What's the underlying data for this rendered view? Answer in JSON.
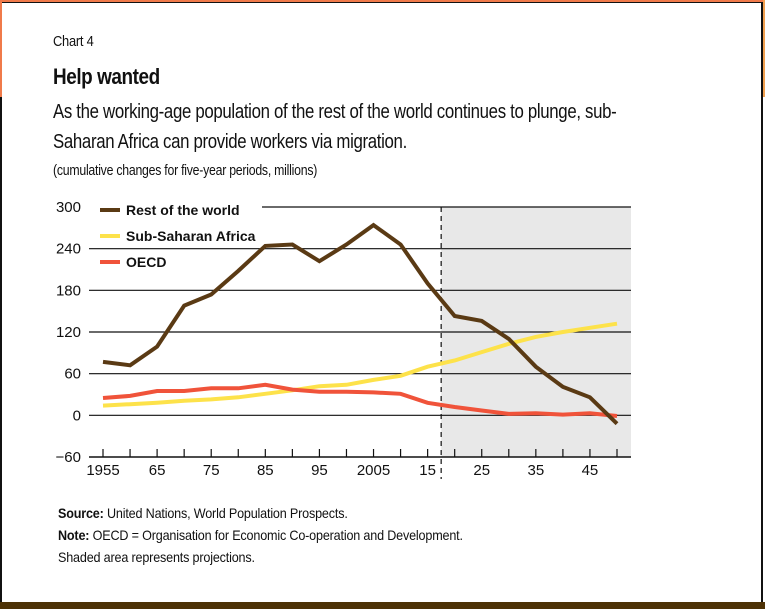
{
  "header": {
    "kicker": "Chart 4",
    "title": "Help wanted",
    "subtitle": "As the working-age population of the rest of the world continues to plunge, sub-Saharan Africa can provide workers via migration.",
    "units": "(cumulative changes for five-year periods, millions)"
  },
  "footer": {
    "source_label": "Source:",
    "source_text": " United Nations, World Population Prospects.",
    "note_label": "Note:",
    "note_text": " OECD = Organisation for Economic Co-operation and Development.",
    "note_text2": "Shaded area represents projections."
  },
  "colors": {
    "rest_of_world": "#5a3a14",
    "sub_saharan_africa": "#fde24a",
    "oecd": "#f0533a",
    "projection_shade": "#e8e8e8",
    "frame_orange": "#f07a4a",
    "bottom_bar": "#4d3205"
  },
  "chart_data": {
    "type": "line",
    "title": "Help wanted",
    "xlabel": "",
    "ylabel": "cumulative changes for five-year periods, millions",
    "x": [
      1955,
      1960,
      1965,
      1970,
      1975,
      1980,
      1985,
      1990,
      1995,
      2000,
      2005,
      2010,
      2015,
      2020,
      2025,
      2030,
      2035,
      2040,
      2045,
      2050
    ],
    "xlim": [
      1955,
      2052.5
    ],
    "x_tick_values": [
      1955,
      1960,
      1965,
      1970,
      1975,
      1980,
      1985,
      1990,
      1995,
      2000,
      2005,
      2010,
      2015,
      2020,
      2025,
      2030,
      2035,
      2040,
      2045,
      2050
    ],
    "x_tick_labels": [
      {
        "value": 1955,
        "label": "1955"
      },
      {
        "value": 1965,
        "label": "65"
      },
      {
        "value": 1975,
        "label": "75"
      },
      {
        "value": 1985,
        "label": "85"
      },
      {
        "value": 1995,
        "label": "95"
      },
      {
        "value": 2005,
        "label": "2005"
      },
      {
        "value": 2015,
        "label": "15"
      },
      {
        "value": 2025,
        "label": "25"
      },
      {
        "value": 2035,
        "label": "35"
      },
      {
        "value": 2045,
        "label": "45"
      }
    ],
    "ylim": [
      -60,
      300
    ],
    "y_ticks": [
      300,
      240,
      180,
      120,
      60,
      0,
      -60
    ],
    "y_tick_labels": [
      "300",
      "240",
      "180",
      "120",
      "60",
      "0",
      "−60"
    ],
    "grid": true,
    "projection_start": 2017.5,
    "projection_label": "Shaded area represents projections.",
    "legend_position": "top-left",
    "series": [
      {
        "key": "rest_of_world",
        "name": "Rest of the world",
        "values": [
          77,
          72,
          99,
          158,
          174,
          208,
          244,
          246,
          222,
          246,
          274,
          246,
          190,
          143,
          136,
          110,
          70,
          41,
          26,
          -12
        ]
      },
      {
        "key": "sub_saharan_africa",
        "name": "Sub-Saharan Africa",
        "values": [
          14,
          16,
          18,
          21,
          23,
          26,
          31,
          36,
          42,
          44,
          51,
          57,
          70,
          79,
          91,
          103,
          113,
          120,
          126,
          132
        ]
      },
      {
        "key": "oecd",
        "name": "OECD",
        "values": [
          25,
          28,
          35,
          35,
          39,
          39,
          44,
          37,
          34,
          34,
          33,
          31,
          18,
          12,
          7,
          2,
          3,
          1,
          3,
          -1
        ]
      }
    ]
  }
}
